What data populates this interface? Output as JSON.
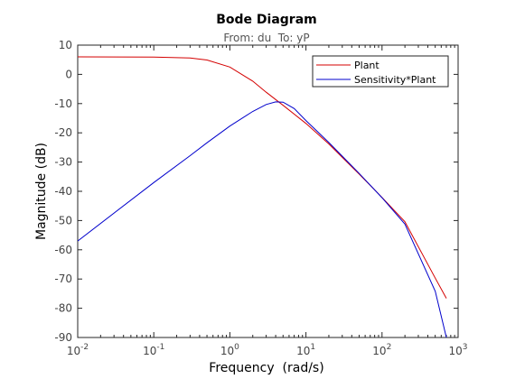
{
  "chart_data": {
    "type": "line",
    "title": "Bode Diagram",
    "subtitle": "From: du  To: yP",
    "xlabel": "Frequency  (rad/s)",
    "ylabel": "Magnitude (dB)",
    "xscale": "log",
    "xlim": [
      0.01,
      1000
    ],
    "ylim": [
      -90,
      10
    ],
    "x_ticks": [
      {
        "base": "10",
        "exp": "-2",
        "value": 0.01
      },
      {
        "base": "10",
        "exp": "-1",
        "value": 0.1
      },
      {
        "base": "10",
        "exp": "0",
        "value": 1
      },
      {
        "base": "10",
        "exp": "1",
        "value": 10
      },
      {
        "base": "10",
        "exp": "2",
        "value": 100
      },
      {
        "base": "10",
        "exp": "3",
        "value": 1000
      }
    ],
    "y_ticks": [
      "10",
      "0",
      "-10",
      "-20",
      "-30",
      "-40",
      "-50",
      "-60",
      "-70",
      "-80",
      "-90"
    ],
    "grid": false,
    "legend_position": "top-right",
    "series": [
      {
        "name": "Plant",
        "color": "#d40000",
        "x": [
          0.01,
          0.1,
          0.3,
          0.5,
          1,
          2,
          3,
          5,
          10,
          20,
          50,
          100,
          200,
          500,
          700
        ],
        "y": [
          6,
          5.9,
          5.6,
          4.9,
          2.5,
          -2.3,
          -6.1,
          -10.6,
          -16.8,
          -23.8,
          -34.1,
          -42.1,
          -50.4,
          -69.7,
          -76.6
        ]
      },
      {
        "name": "Sensitivity*Plant",
        "color": "#0000cc",
        "x": [
          0.01,
          0.1,
          0.3,
          0.5,
          1,
          2,
          3,
          4,
          5,
          7,
          10,
          20,
          50,
          100,
          200,
          500,
          700
        ],
        "y": [
          -57,
          -37,
          -27.8,
          -23.4,
          -17.7,
          -12.7,
          -10.3,
          -9.4,
          -9.5,
          -11.7,
          -15.8,
          -23.3,
          -33.9,
          -42.2,
          -51.2,
          -74.2,
          -90
        ]
      }
    ]
  }
}
